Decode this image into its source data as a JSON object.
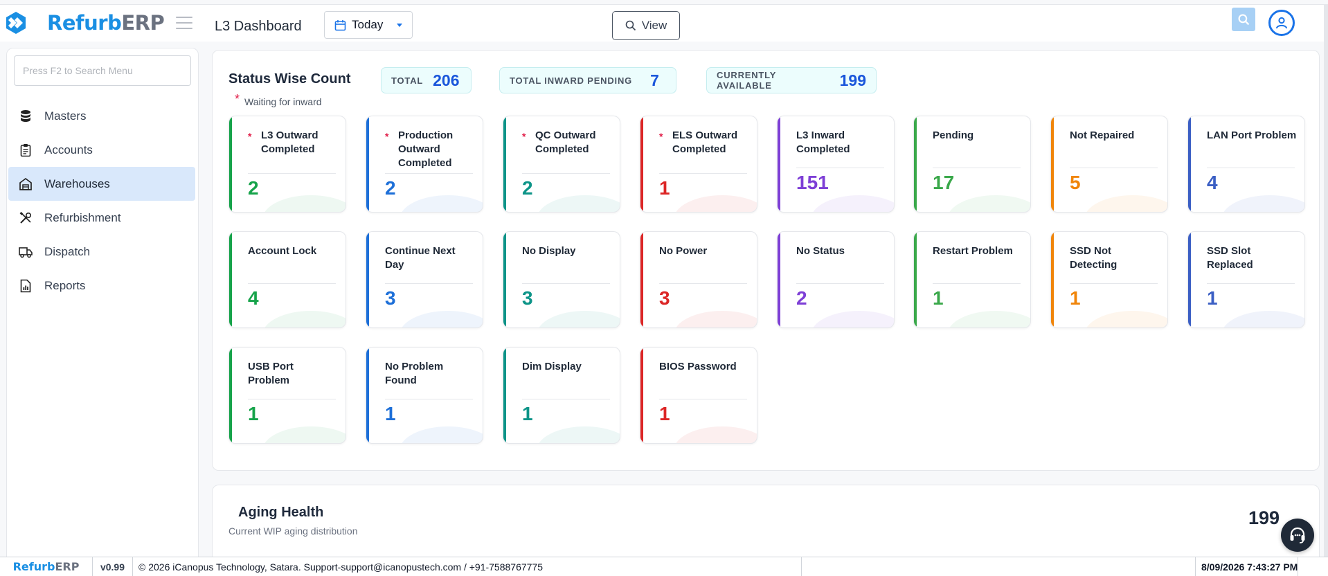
{
  "app": {
    "logo_a": "Refurb",
    "logo_b": "ERP",
    "page_title": "L3 Dashboard"
  },
  "header": {
    "date_filter": "Today",
    "view_label": "View"
  },
  "sidebar": {
    "search_placeholder": "Press F2 to Search Menu",
    "items": [
      {
        "label": "Masters",
        "icon": "database-icon"
      },
      {
        "label": "Accounts",
        "icon": "clipboard-icon"
      },
      {
        "label": "Warehouses",
        "icon": "warehouse-icon",
        "active": true
      },
      {
        "label": "Refurbishment",
        "icon": "tools-icon"
      },
      {
        "label": "Dispatch",
        "icon": "truck-icon"
      },
      {
        "label": "Reports",
        "icon": "report-icon"
      }
    ]
  },
  "status": {
    "title": "Status Wise Count",
    "legend_star": "*",
    "legend_text": "Waiting for inward",
    "totals": [
      {
        "label": "TOTAL",
        "value": "206"
      },
      {
        "label": "TOTAL INWARD PENDING",
        "value": "7"
      },
      {
        "label": "CURRENTLY AVAILABLE",
        "value": "199"
      }
    ],
    "cards": [
      {
        "title": "L3 Outward Completed",
        "value": "2",
        "star": true,
        "color": "#16a34a"
      },
      {
        "title": "Production Outward Completed",
        "value": "2",
        "star": true,
        "color": "#1d6fd8"
      },
      {
        "title": "QC Outward Completed",
        "value": "2",
        "star": true,
        "color": "#0d9488"
      },
      {
        "title": "ELS Outward Completed",
        "value": "1",
        "star": true,
        "color": "#dc2626"
      },
      {
        "title": "L3 Inward Completed",
        "value": "151",
        "star": false,
        "color": "#7e3fd6"
      },
      {
        "title": "Pending",
        "value": "17",
        "star": false,
        "color": "#3aa84a"
      },
      {
        "title": "Not Repaired",
        "value": "5",
        "star": false,
        "color": "#f0850a"
      },
      {
        "title": "LAN Port Problem",
        "value": "4",
        "star": false,
        "color": "#3b5fc4"
      },
      {
        "title": "Account Lock",
        "value": "4",
        "star": false,
        "color": "#16a34a"
      },
      {
        "title": "Continue Next Day",
        "value": "3",
        "star": false,
        "color": "#1d6fd8"
      },
      {
        "title": "No Display",
        "value": "3",
        "star": false,
        "color": "#0d9488"
      },
      {
        "title": "No Power",
        "value": "3",
        "star": false,
        "color": "#dc2626"
      },
      {
        "title": "No Status",
        "value": "2",
        "star": false,
        "color": "#7e3fd6"
      },
      {
        "title": "Restart Problem",
        "value": "1",
        "star": false,
        "color": "#3aa84a"
      },
      {
        "title": "SSD Not Detecting",
        "value": "1",
        "star": false,
        "color": "#f0850a"
      },
      {
        "title": "SSD Slot Replaced",
        "value": "1",
        "star": false,
        "color": "#3b5fc4"
      },
      {
        "title": "USB Port Problem",
        "value": "1",
        "star": false,
        "color": "#16a34a"
      },
      {
        "title": "No Problem Found",
        "value": "1",
        "star": false,
        "color": "#1d6fd8"
      },
      {
        "title": "Dim Display",
        "value": "1",
        "star": false,
        "color": "#0d9488"
      },
      {
        "title": "BIOS Password",
        "value": "1",
        "star": false,
        "color": "#dc2626"
      }
    ]
  },
  "aging": {
    "title": "Aging Health",
    "subtitle": "Current WIP aging distribution",
    "total": "199"
  },
  "footer": {
    "version": "v0.99",
    "copyright": "© 2026 iCanopus Technology, Satara. Support-support@icanopustech.com / +91-7588767775",
    "datetime": "8/09/2026 7:43:27 PM"
  }
}
